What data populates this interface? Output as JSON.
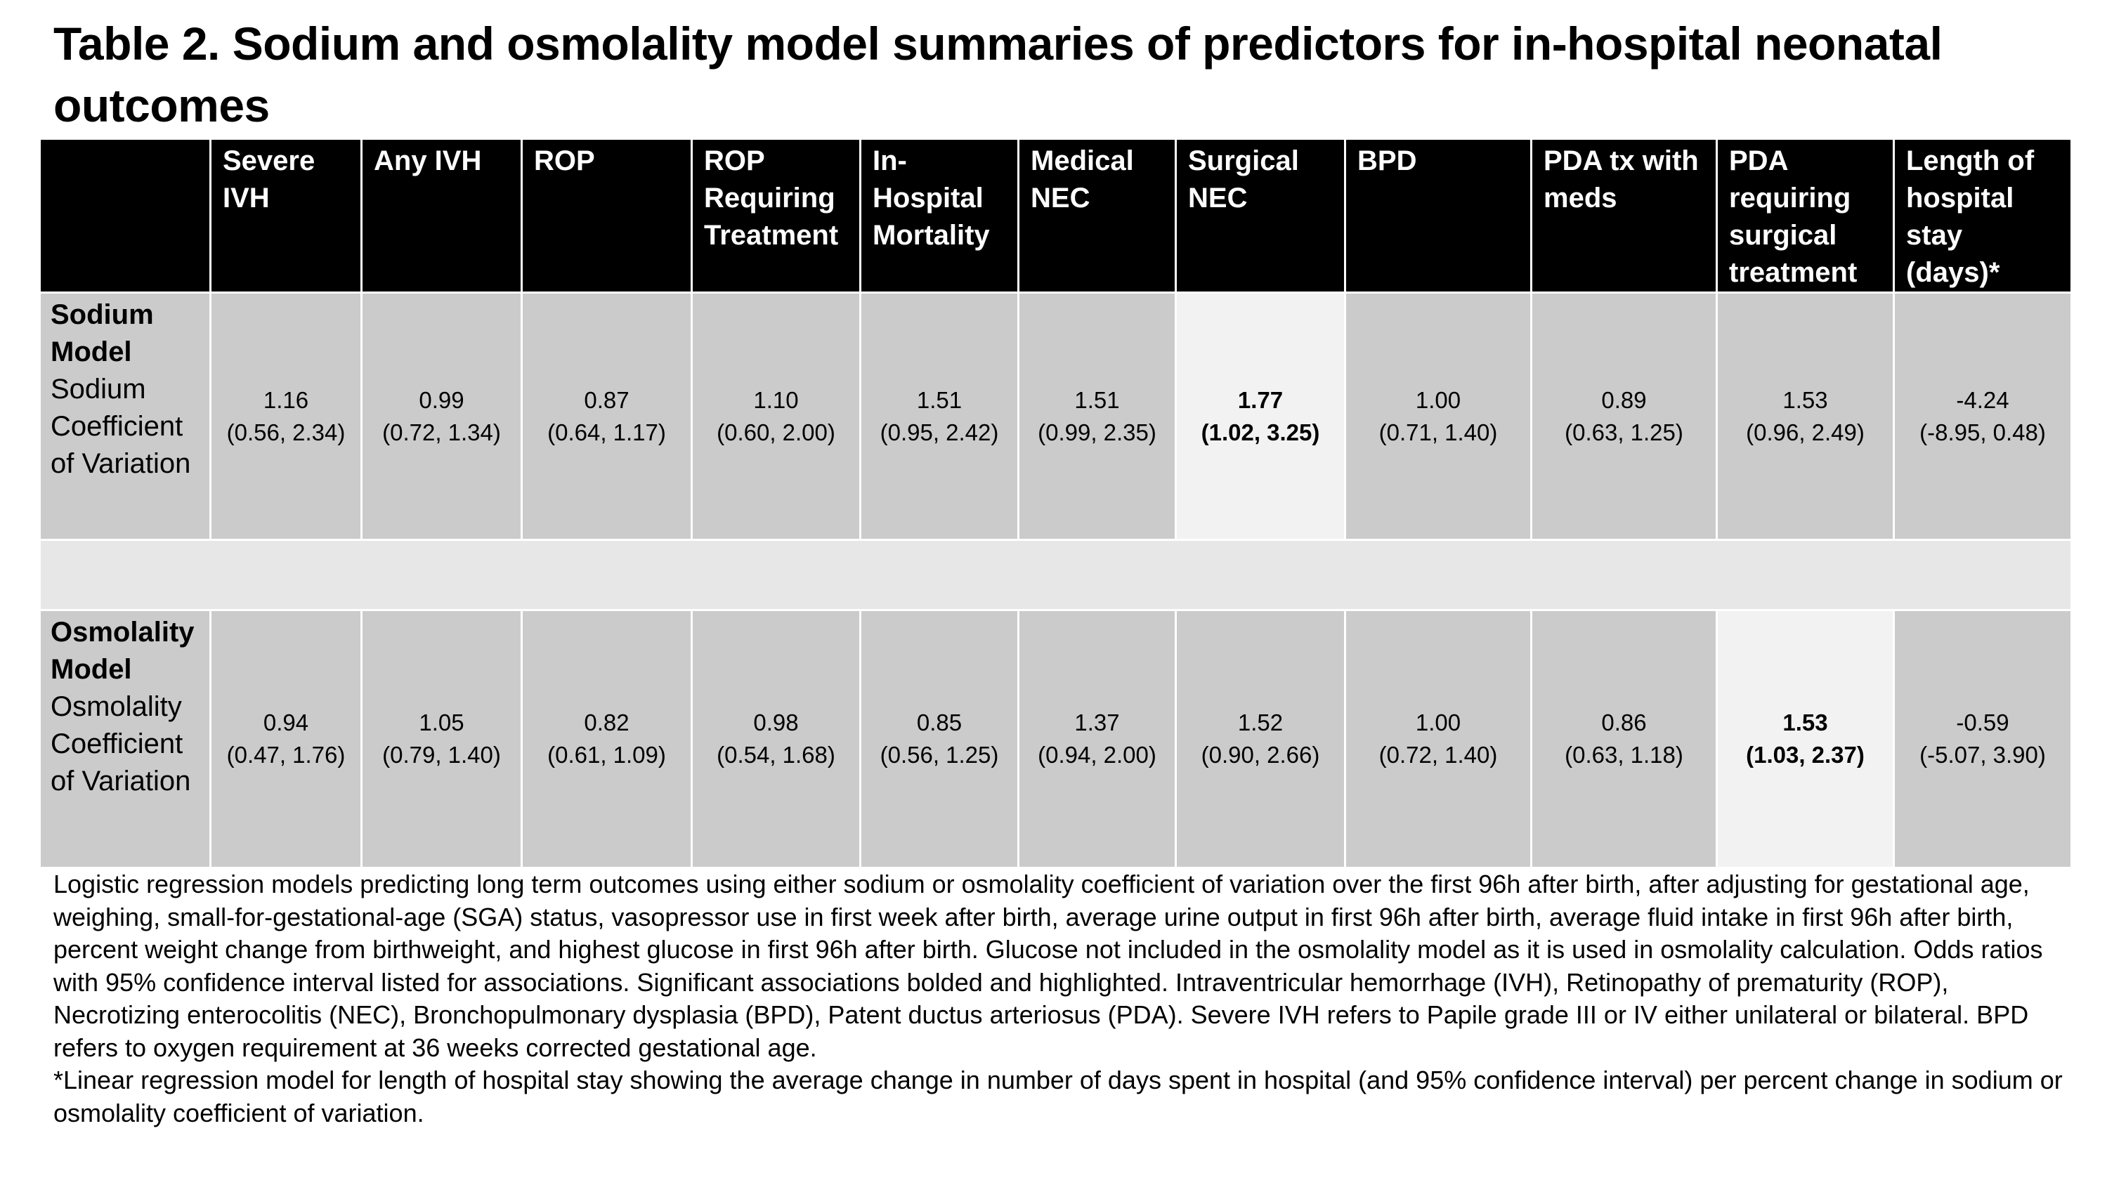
{
  "title": "Table 2. Sodium and osmolality model summaries of predictors for in-hospital neonatal outcomes",
  "table": {
    "headers": [
      "",
      "Severe IVH",
      "Any IVH",
      "ROP",
      "ROP Requiring Treatment",
      "In-Hospital Mortality",
      "Medical NEC",
      "Surgical NEC",
      "BPD",
      "PDA tx with meds",
      "PDA requiring surgical treatment",
      "Length of hospital stay (days)*"
    ],
    "rows": [
      {
        "model": "Sodium Model",
        "predictor": "Sodium Coefficient of Variation",
        "cells": [
          {
            "estimate": "1.16",
            "ci": "(0.56, 2.34)",
            "significant": false
          },
          {
            "estimate": "0.99",
            "ci": "(0.72, 1.34)",
            "significant": false
          },
          {
            "estimate": "0.87",
            "ci": "(0.64, 1.17)",
            "significant": false
          },
          {
            "estimate": "1.10",
            "ci": "(0.60, 2.00)",
            "significant": false
          },
          {
            "estimate": "1.51",
            "ci": "(0.95, 2.42)",
            "significant": false
          },
          {
            "estimate": "1.51",
            "ci": "(0.99, 2.35)",
            "significant": false
          },
          {
            "estimate": "1.77",
            "ci": "(1.02, 3.25)",
            "significant": true
          },
          {
            "estimate": "1.00",
            "ci": "(0.71, 1.40)",
            "significant": false
          },
          {
            "estimate": "0.89",
            "ci": "(0.63, 1.25)",
            "significant": false
          },
          {
            "estimate": "1.53",
            "ci": "(0.96, 2.49)",
            "significant": false
          },
          {
            "estimate": "-4.24",
            "ci": "(-8.95, 0.48)",
            "significant": false
          }
        ]
      },
      {
        "model": "Osmolality Model",
        "predictor": "Osmolality Coefficient of Variation",
        "cells": [
          {
            "estimate": "0.94",
            "ci": "(0.47, 1.76)",
            "significant": false
          },
          {
            "estimate": "1.05",
            "ci": "(0.79, 1.40)",
            "significant": false
          },
          {
            "estimate": "0.82",
            "ci": "(0.61, 1.09)",
            "significant": false
          },
          {
            "estimate": "0.98",
            "ci": "(0.54, 1.68)",
            "significant": false
          },
          {
            "estimate": "0.85",
            "ci": "(0.56, 1.25)",
            "significant": false
          },
          {
            "estimate": "1.37",
            "ci": "(0.94, 2.00)",
            "significant": false
          },
          {
            "estimate": "1.52",
            "ci": "(0.90, 2.66)",
            "significant": false
          },
          {
            "estimate": "1.00",
            "ci": "(0.72, 1.40)",
            "significant": false
          },
          {
            "estimate": "0.86",
            "ci": "(0.63, 1.18)",
            "significant": false
          },
          {
            "estimate": "1.53",
            "ci": "(1.03, 2.37)",
            "significant": true
          },
          {
            "estimate": "-0.59",
            "ci": "(-5.07, 3.90)",
            "significant": false
          }
        ]
      }
    ]
  },
  "footnotes": [
    "Logistic regression models predicting long term outcomes using either sodium or osmolality coefficient of variation over the first 96h after birth, after adjusting for gestational age, weighing, small-for-gestational-age (SGA) status, vasopressor use in first week after birth, average urine output in first 96h after birth, average fluid intake in first 96h after birth, percent weight change from birthweight, and highest glucose in first 96h after birth. Glucose not included in the osmolality model as it is used in osmolality calculation. Odds ratios with 95% confidence interval listed for associations. Significant associations bolded and highlighted. Intraventricular hemorrhage (IVH), Retinopathy of prematurity (ROP), Necrotizing enterocolitis (NEC), Bronchopulmonary dysplasia (BPD), Patent ductus arteriosus (PDA). Severe IVH refers to Papile grade III or IV either unilateral or bilateral. BPD refers to oxygen requirement at 36 weeks corrected gestational age.",
    "*Linear regression model for length of hospital stay showing the average change in number of days spent in hospital (and 95% confidence interval) per percent change in sodium or osmolality coefficient of variation."
  ]
}
